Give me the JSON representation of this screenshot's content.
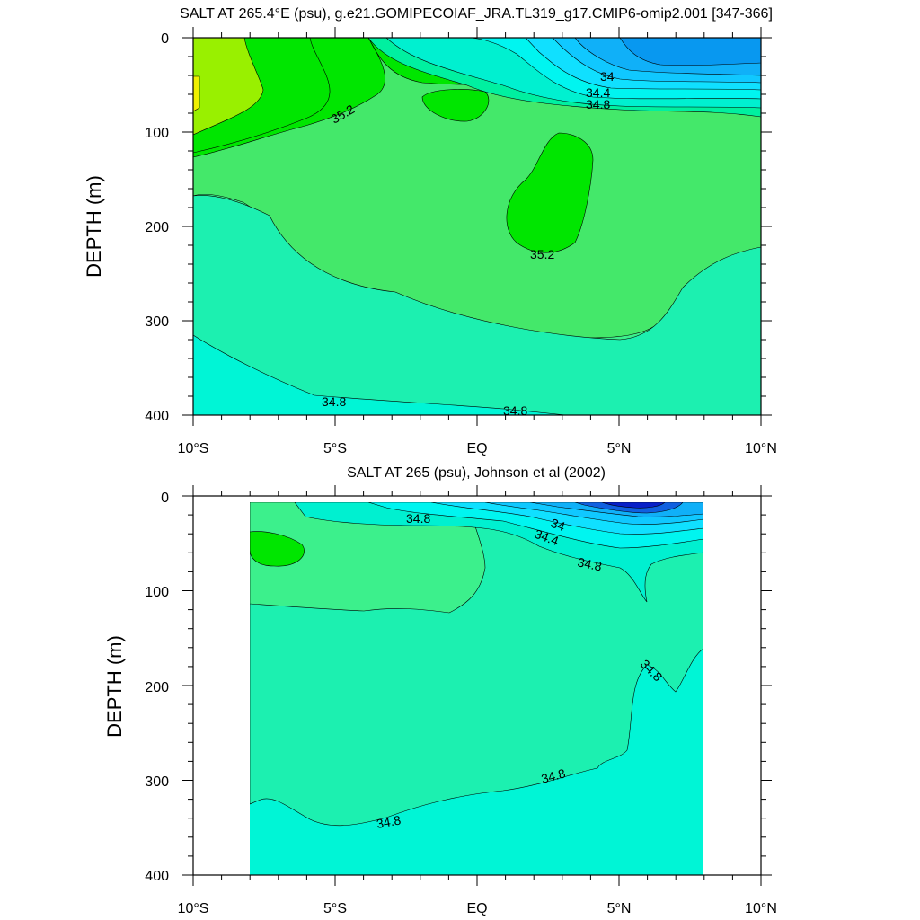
{
  "panels": [
    {
      "title": "SALT AT 265.4°E (psu), g.e21.GOMIPECOIAF_JRA.TL319_g17.CMIP6-omip2.001 [347-366]",
      "ylabel": "DEPTH (m)",
      "yticks": [
        "0",
        "100",
        "200",
        "300",
        "400"
      ],
      "xticks": [
        "10°S",
        "5°S",
        "EQ",
        "5°N",
        "10°N"
      ],
      "contour_labels": [
        "34",
        "34.4",
        "34.8",
        "35.2",
        "35.2",
        "34.8",
        "34.8"
      ]
    },
    {
      "title": "SALT AT 265 (psu), Johnson et al (2002)",
      "ylabel": "DEPTH (m)",
      "yticks": [
        "0",
        "100",
        "200",
        "300",
        "400"
      ],
      "xticks": [
        "10°S",
        "5°S",
        "EQ",
        "5°N",
        "10°N"
      ],
      "contour_labels": [
        "34.8",
        "34",
        "34.4",
        "34.8",
        "34.8",
        "34.8",
        "34.8"
      ]
    }
  ],
  "chart_data": [
    {
      "type": "heatmap",
      "title": "SALT AT 265.4°E (psu), g.e21.GOMIPECOIAF_JRA.TL319_g17.CMIP6-omip2.001 [347-366]",
      "xlabel": "",
      "ylabel": "DEPTH (m)",
      "xlim": [
        -10,
        10
      ],
      "ylim": [
        400,
        0
      ],
      "x_tick_labels": [
        "10°S",
        "5°S",
        "EQ",
        "5°N",
        "10°N"
      ],
      "y_tick_labels": [
        "0",
        "100",
        "200",
        "300",
        "400"
      ],
      "contour_labels": [
        "34",
        "34.4",
        "34.8",
        "35.2",
        "35.2",
        "34.8",
        "34.8"
      ]
    },
    {
      "type": "heatmap",
      "title": "SALT AT 265 (psu), Johnson et al (2002)",
      "xlabel": "",
      "ylabel": "DEPTH (m)",
      "xlim": [
        -10,
        10
      ],
      "ylim": [
        400,
        0
      ],
      "x_tick_labels": [
        "10°S",
        "5°S",
        "EQ",
        "5°N",
        "10°N"
      ],
      "y_tick_labels": [
        "0",
        "100",
        "200",
        "300",
        "400"
      ],
      "contour_labels": [
        "34.8",
        "34",
        "34.4",
        "34.8",
        "34.8",
        "34.8",
        "34.8"
      ]
    }
  ]
}
